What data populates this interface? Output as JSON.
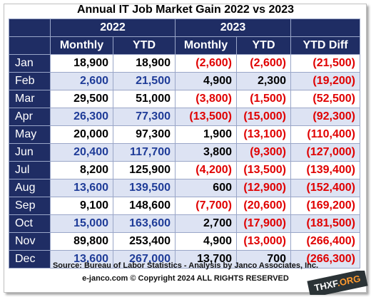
{
  "title": "Annual IT  Job Market  Gain 2022 vs 2023",
  "headers": {
    "year_2022": "2022",
    "year_2023": "2023",
    "cols": [
      "Monthly",
      "YTD",
      "Monthly",
      "YTD",
      "YTD Diff"
    ]
  },
  "rows": [
    {
      "month": "Jan",
      "m22": "18,900",
      "y22": "18,900",
      "m23": "(2,600)",
      "y23": "(2,600)",
      "diff": "(21,500)"
    },
    {
      "month": "Feb",
      "m22": "2,600",
      "y22": "21,500",
      "m23": "4,900",
      "y23": "2,300",
      "diff": "(19,200)"
    },
    {
      "month": "Mar",
      "m22": "29,500",
      "y22": "51,000",
      "m23": "(3,800)",
      "y23": "(1,500)",
      "diff": "(52,500)"
    },
    {
      "month": "Apr",
      "m22": "26,300",
      "y22": "77,300",
      "m23": "(13,500)",
      "y23": "(15,000)",
      "diff": "(92,300)"
    },
    {
      "month": "May",
      "m22": "20,000",
      "y22": "97,300",
      "m23": "1,900",
      "y23": "(13,100)",
      "diff": "(110,400)"
    },
    {
      "month": "Jun",
      "m22": "20,400",
      "y22": "117,700",
      "m23": "3,800",
      "y23": "(9,300)",
      "diff": "(127,000)"
    },
    {
      "month": "Jul",
      "m22": "8,200",
      "y22": "125,900",
      "m23": "(4,200)",
      "y23": "(13,500)",
      "diff": "(139,400)"
    },
    {
      "month": "Aug",
      "m22": "13,600",
      "y22": "139,500",
      "m23": "600",
      "y23": "(12,900)",
      "diff": "(152,400)"
    },
    {
      "month": "Sep",
      "m22": "9,100",
      "y22": "148,600",
      "m23": "(7,700)",
      "y23": "(20,600)",
      "diff": "(169,200)"
    },
    {
      "month": "Oct",
      "m22": "15,000",
      "y22": "163,600",
      "m23": "2,700",
      "y23": "(17,900)",
      "diff": "(181,500)"
    },
    {
      "month": "Nov",
      "m22": "89,800",
      "y22": "253,400",
      "m23": "4,900",
      "y23": "(13,000)",
      "diff": "(266,400)"
    },
    {
      "month": "Dec",
      "m22": "13,600",
      "y22": "267,000",
      "m23": "13,700",
      "y23": "700",
      "diff": "(266,300)"
    }
  ],
  "source_line": "Source: Bureau of Labor Statistics - Analysis by Janco Associates, Inc.",
  "copyright_line": "e-janco.com © Copyright 2024 ALL RIGHTS RESERVED",
  "watermark": {
    "main": "THXF",
    "accent": ".ORG"
  },
  "colors": {
    "header_bg": "#1f2d64",
    "stripe": "#dde3f3",
    "negative": "#e00000",
    "blue_text": "#1f3c98"
  }
}
